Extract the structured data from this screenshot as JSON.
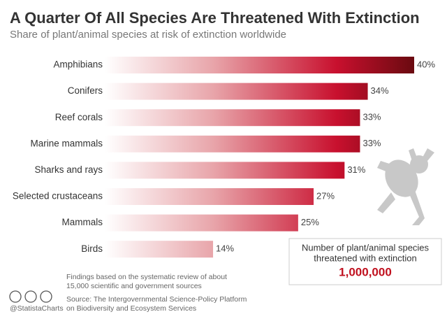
{
  "chart_data": {
    "type": "bar",
    "orientation": "horizontal",
    "title": "A Quarter Of All Species Are Threatened With Extinction",
    "subtitle": "Share of plant/animal species at risk of extinction worldwide",
    "categories": [
      "Amphibians",
      "Conifers",
      "Reef corals",
      "Marine mammals",
      "Sharks and rays",
      "Selected crustaceans",
      "Mammals",
      "Birds"
    ],
    "values": [
      40,
      34,
      33,
      33,
      31,
      27,
      25,
      14
    ],
    "value_labels": [
      "40%",
      "34%",
      "33%",
      "33%",
      "31%",
      "27%",
      "25%",
      "14%"
    ],
    "color": "#c8102e",
    "callout": {
      "text": [
        "Number of plant/animal species",
        "threatened with extinction"
      ],
      "value": "1,000,000"
    },
    "footnote": [
      "Findings based on the systematic review of about",
      "15,000 scientific and government sources"
    ],
    "source": [
      "Source: The Intergovernmental Science-Policy Platform",
      "on Biodiversity and Ecosystem Services"
    ],
    "credit": "@StatistaCharts"
  }
}
